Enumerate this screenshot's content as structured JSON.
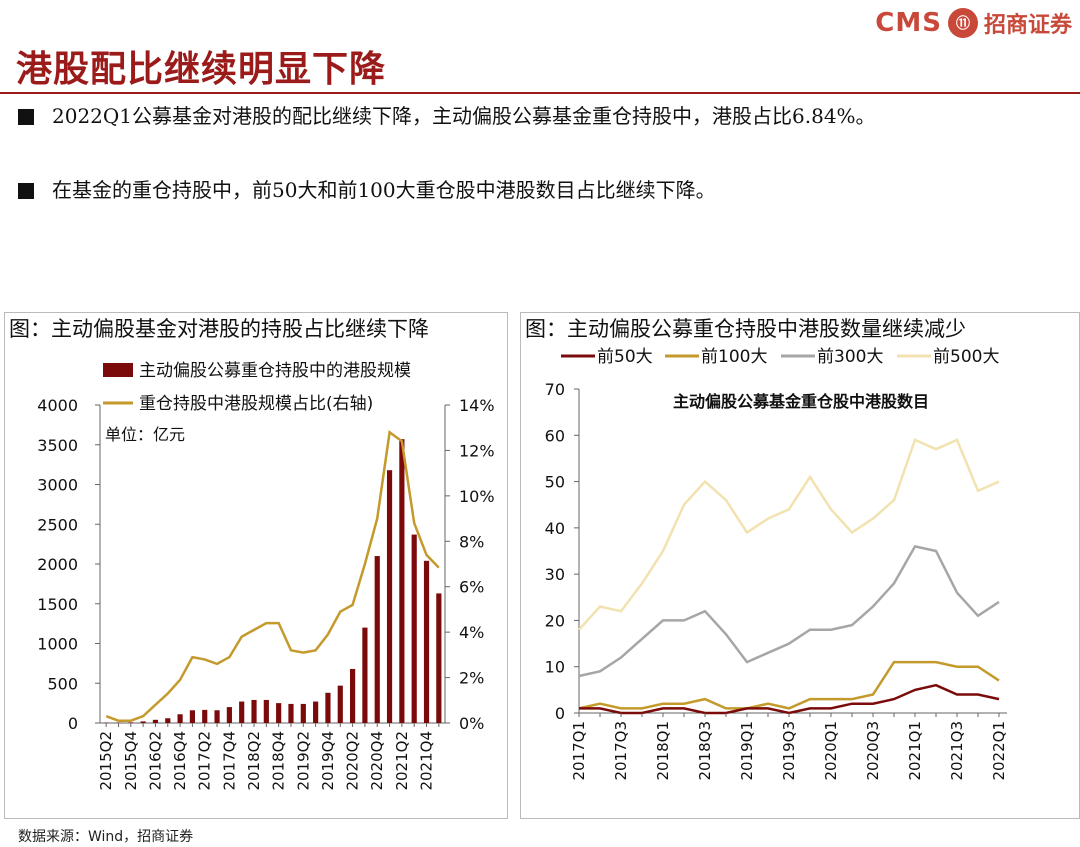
{
  "header": {
    "logo_cms": "CMS",
    "logo_seal": "⑪",
    "logo_cn": "招商证券",
    "title": "港股配比继续明显下降"
  },
  "bullets": [
    "2022Q1公募基金对港股的配比继续下降，主动偏股公募基金重仓持股中，港股占比6.84%。",
    "在基金的重仓持股中，前50大和前100大重仓股中港股数目占比继续下降。"
  ],
  "source": "数据来源：Wind，招商证券",
  "colors": {
    "bar": "#7b0b0b",
    "line_gold": "#c49a2c",
    "top50": "#7b0b0b",
    "top100": "#c49a2c",
    "top300": "#a6a6a6",
    "top500": "#f2e2b0",
    "title_red": "#9b1b1b"
  },
  "chart_data": [
    {
      "type": "bar",
      "title": "图：主动偏股基金对港股的持股占比继续下降",
      "unit_label": "单位：亿元",
      "categories": [
        "2015Q2",
        "2015Q3",
        "2015Q4",
        "2016Q1",
        "2016Q2",
        "2016Q3",
        "2016Q4",
        "2017Q1",
        "2017Q2",
        "2017Q3",
        "2017Q4",
        "2018Q1",
        "2018Q2",
        "2018Q3",
        "2018Q4",
        "2019Q1",
        "2019Q2",
        "2019Q3",
        "2019Q4",
        "2020Q1",
        "2020Q2",
        "2020Q3",
        "2020Q4",
        "2021Q1",
        "2021Q2",
        "2021Q3",
        "2021Q4",
        "2022Q1"
      ],
      "tick_labels": [
        "2015Q2",
        "2015Q4",
        "2016Q2",
        "2016Q4",
        "2017Q2",
        "2017Q4",
        "2018Q2",
        "2018Q4",
        "2019Q2",
        "2019Q4",
        "2020Q2",
        "2020Q4",
        "2021Q2",
        "2021Q4"
      ],
      "series": [
        {
          "name": "主动偏股公募重仓持股中的港股规模",
          "axis": "left",
          "values": [
            5,
            5,
            8,
            20,
            40,
            60,
            110,
            160,
            165,
            160,
            200,
            270,
            290,
            290,
            250,
            240,
            240,
            270,
            380,
            470,
            680,
            1200,
            2100,
            3180,
            3570,
            2370,
            2040,
            1630
          ]
        },
        {
          "name": "重仓持股中港股规模占比(右轴)",
          "axis": "right",
          "values": [
            0.3,
            0.1,
            0.1,
            0.3,
            0.8,
            1.3,
            1.9,
            2.9,
            2.8,
            2.6,
            2.9,
            3.8,
            4.1,
            4.4,
            4.4,
            3.2,
            3.1,
            3.2,
            3.9,
            4.9,
            5.2,
            7.0,
            9.0,
            12.8,
            12.4,
            8.8,
            7.4,
            6.84
          ]
        }
      ],
      "ylim_left": [
        0,
        4000
      ],
      "yticks_left": [
        "0",
        "500",
        "1000",
        "1500",
        "2000",
        "2500",
        "3000",
        "3500",
        "4000"
      ],
      "ylim_right": [
        0,
        14
      ],
      "yticks_right": [
        "0%",
        "2%",
        "4%",
        "6%",
        "8%",
        "10%",
        "12%",
        "14%"
      ]
    },
    {
      "type": "line",
      "title": "图：主动偏股公募重仓持股中港股数量继续减少",
      "inner_title": "主动偏股公募基金重仓股中港股数目",
      "categories": [
        "2017Q1",
        "2017Q2",
        "2017Q3",
        "2017Q4",
        "2018Q1",
        "2018Q2",
        "2018Q3",
        "2018Q4",
        "2019Q1",
        "2019Q2",
        "2019Q3",
        "2019Q4",
        "2020Q1",
        "2020Q2",
        "2020Q3",
        "2020Q4",
        "2021Q1",
        "2021Q2",
        "2021Q3",
        "2021Q4",
        "2022Q1"
      ],
      "tick_labels": [
        "2017Q1",
        "2017Q3",
        "2018Q1",
        "2018Q3",
        "2019Q1",
        "2019Q3",
        "2020Q1",
        "2020Q3",
        "2021Q1",
        "2021Q3",
        "2022Q1"
      ],
      "series": [
        {
          "name": "前50大",
          "values": [
            1,
            1,
            0,
            0,
            1,
            1,
            0,
            0,
            1,
            1,
            0,
            1,
            1,
            2,
            2,
            3,
            5,
            6,
            4,
            4,
            3
          ]
        },
        {
          "name": "前100大",
          "values": [
            1,
            2,
            1,
            1,
            2,
            2,
            3,
            1,
            1,
            2,
            1,
            3,
            3,
            3,
            4,
            11,
            11,
            11,
            10,
            10,
            7
          ]
        },
        {
          "name": "前300大",
          "values": [
            8,
            9,
            12,
            16,
            20,
            20,
            22,
            17,
            11,
            13,
            15,
            18,
            18,
            19,
            23,
            28,
            36,
            35,
            26,
            21,
            24
          ]
        },
        {
          "name": "前500大",
          "values": [
            18,
            23,
            22,
            28,
            35,
            45,
            50,
            46,
            39,
            42,
            44,
            51,
            44,
            39,
            42,
            46,
            59,
            57,
            59,
            48,
            50
          ]
        }
      ],
      "ylim": [
        0,
        70
      ],
      "yticks": [
        "0",
        "10",
        "20",
        "30",
        "40",
        "50",
        "60",
        "70"
      ]
    }
  ]
}
